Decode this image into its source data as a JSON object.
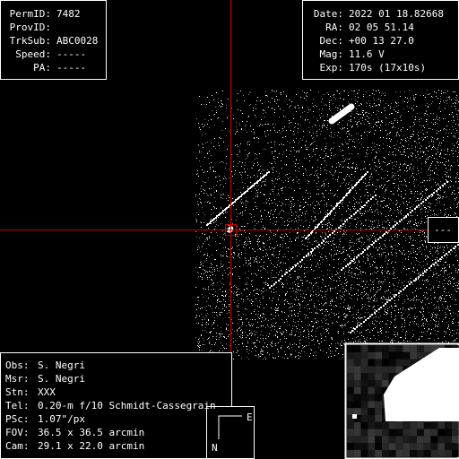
{
  "top_left": {
    "rows": [
      {
        "label": "PermID:",
        "value": "7482"
      },
      {
        "label": "ProvID:"
      },
      {
        "label": "TrkSub:",
        "value": "ABC0028"
      },
      {
        "label": "Speed:",
        "value": "-----"
      },
      {
        "label": "PA:",
        "value": "-----"
      }
    ]
  },
  "top_right": {
    "rows": [
      {
        "label": "Date:",
        "value": "2022 01 18.82668"
      },
      {
        "label": "RA:",
        "value": "02 05 51.14"
      },
      {
        "label": "Dec:",
        "value": "+00 13 27.0"
      },
      {
        "label": "Mag:",
        "value": "11.6 V"
      },
      {
        "label": "Exp:",
        "value": "170s (17x10s)"
      }
    ]
  },
  "bottom_left": {
    "rows": [
      {
        "label": "Obs:",
        "value": "S. Negri"
      },
      {
        "label": "Msr:",
        "value": "S. Negri"
      },
      {
        "label": "Stn:",
        "value": "XXX"
      },
      {
        "label": "Tel:",
        "value": "0.20-m f/10 Schmidt-Cassegrain"
      },
      {
        "label": "PSc:",
        "value": "1.07\"/px"
      },
      {
        "label": "FOV:",
        "value": "36.5 x 36.5 arcmin"
      },
      {
        "label": "Cam:",
        "value": "29.1 x 22.0 arcmin"
      }
    ]
  },
  "side_label": "---",
  "compass": {
    "east": "E",
    "north": "N"
  }
}
